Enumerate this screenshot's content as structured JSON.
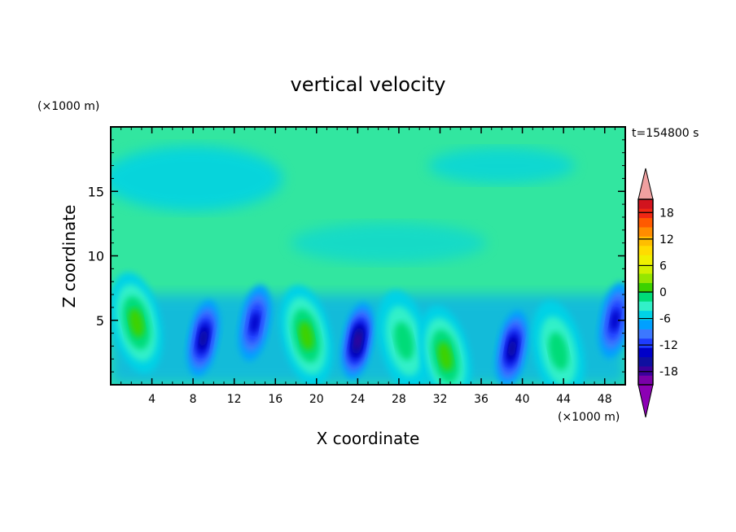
{
  "chart_data": {
    "type": "heatmap",
    "title": "vertical velocity",
    "xlabel": "X coordinate",
    "ylabel": "Z coordinate",
    "x_unit": "(×1000 m)",
    "y_unit": "(×1000 m)",
    "time_label": "t=154800 s",
    "xlim": [
      0,
      50
    ],
    "ylim": [
      0,
      20
    ],
    "x_ticks": [
      4,
      8,
      12,
      16,
      20,
      24,
      28,
      32,
      36,
      40,
      44,
      48
    ],
    "y_ticks": [
      5,
      10,
      15
    ],
    "colorbar": {
      "min": -21,
      "max": 21,
      "step": 3,
      "tick_labels": [
        18,
        12,
        6,
        0,
        -6,
        -12,
        -18
      ],
      "extend": "both",
      "colors": [
        "#7a00a8",
        "#3c009c",
        "#0f0fa0",
        "#0000c8",
        "#1e3cff",
        "#3c78ff",
        "#00a0ff",
        "#00d2e6",
        "#32f0c8",
        "#00dc78",
        "#3cd200",
        "#96e600",
        "#d2f000",
        "#f0f000",
        "#ffdc00",
        "#ffbe00",
        "#ff8c00",
        "#ff5a00",
        "#f02814",
        "#d2141e"
      ]
    },
    "features": [
      {
        "x": 2.5,
        "z": 4.8,
        "w": 9
      },
      {
        "x": 9.0,
        "z": 3.6,
        "w": -10
      },
      {
        "x": 14.0,
        "z": 4.8,
        "w": -7
      },
      {
        "x": 19.0,
        "z": 3.8,
        "w": 7
      },
      {
        "x": 24.0,
        "z": 3.4,
        "w": -13
      },
      {
        "x": 28.5,
        "z": 3.4,
        "w": 4
      },
      {
        "x": 32.5,
        "z": 2.2,
        "w": 7
      },
      {
        "x": 39.0,
        "z": 2.8,
        "w": -11
      },
      {
        "x": 43.5,
        "z": 2.6,
        "w": 5
      },
      {
        "x": 49.0,
        "z": 5.0,
        "w": -8
      }
    ]
  }
}
